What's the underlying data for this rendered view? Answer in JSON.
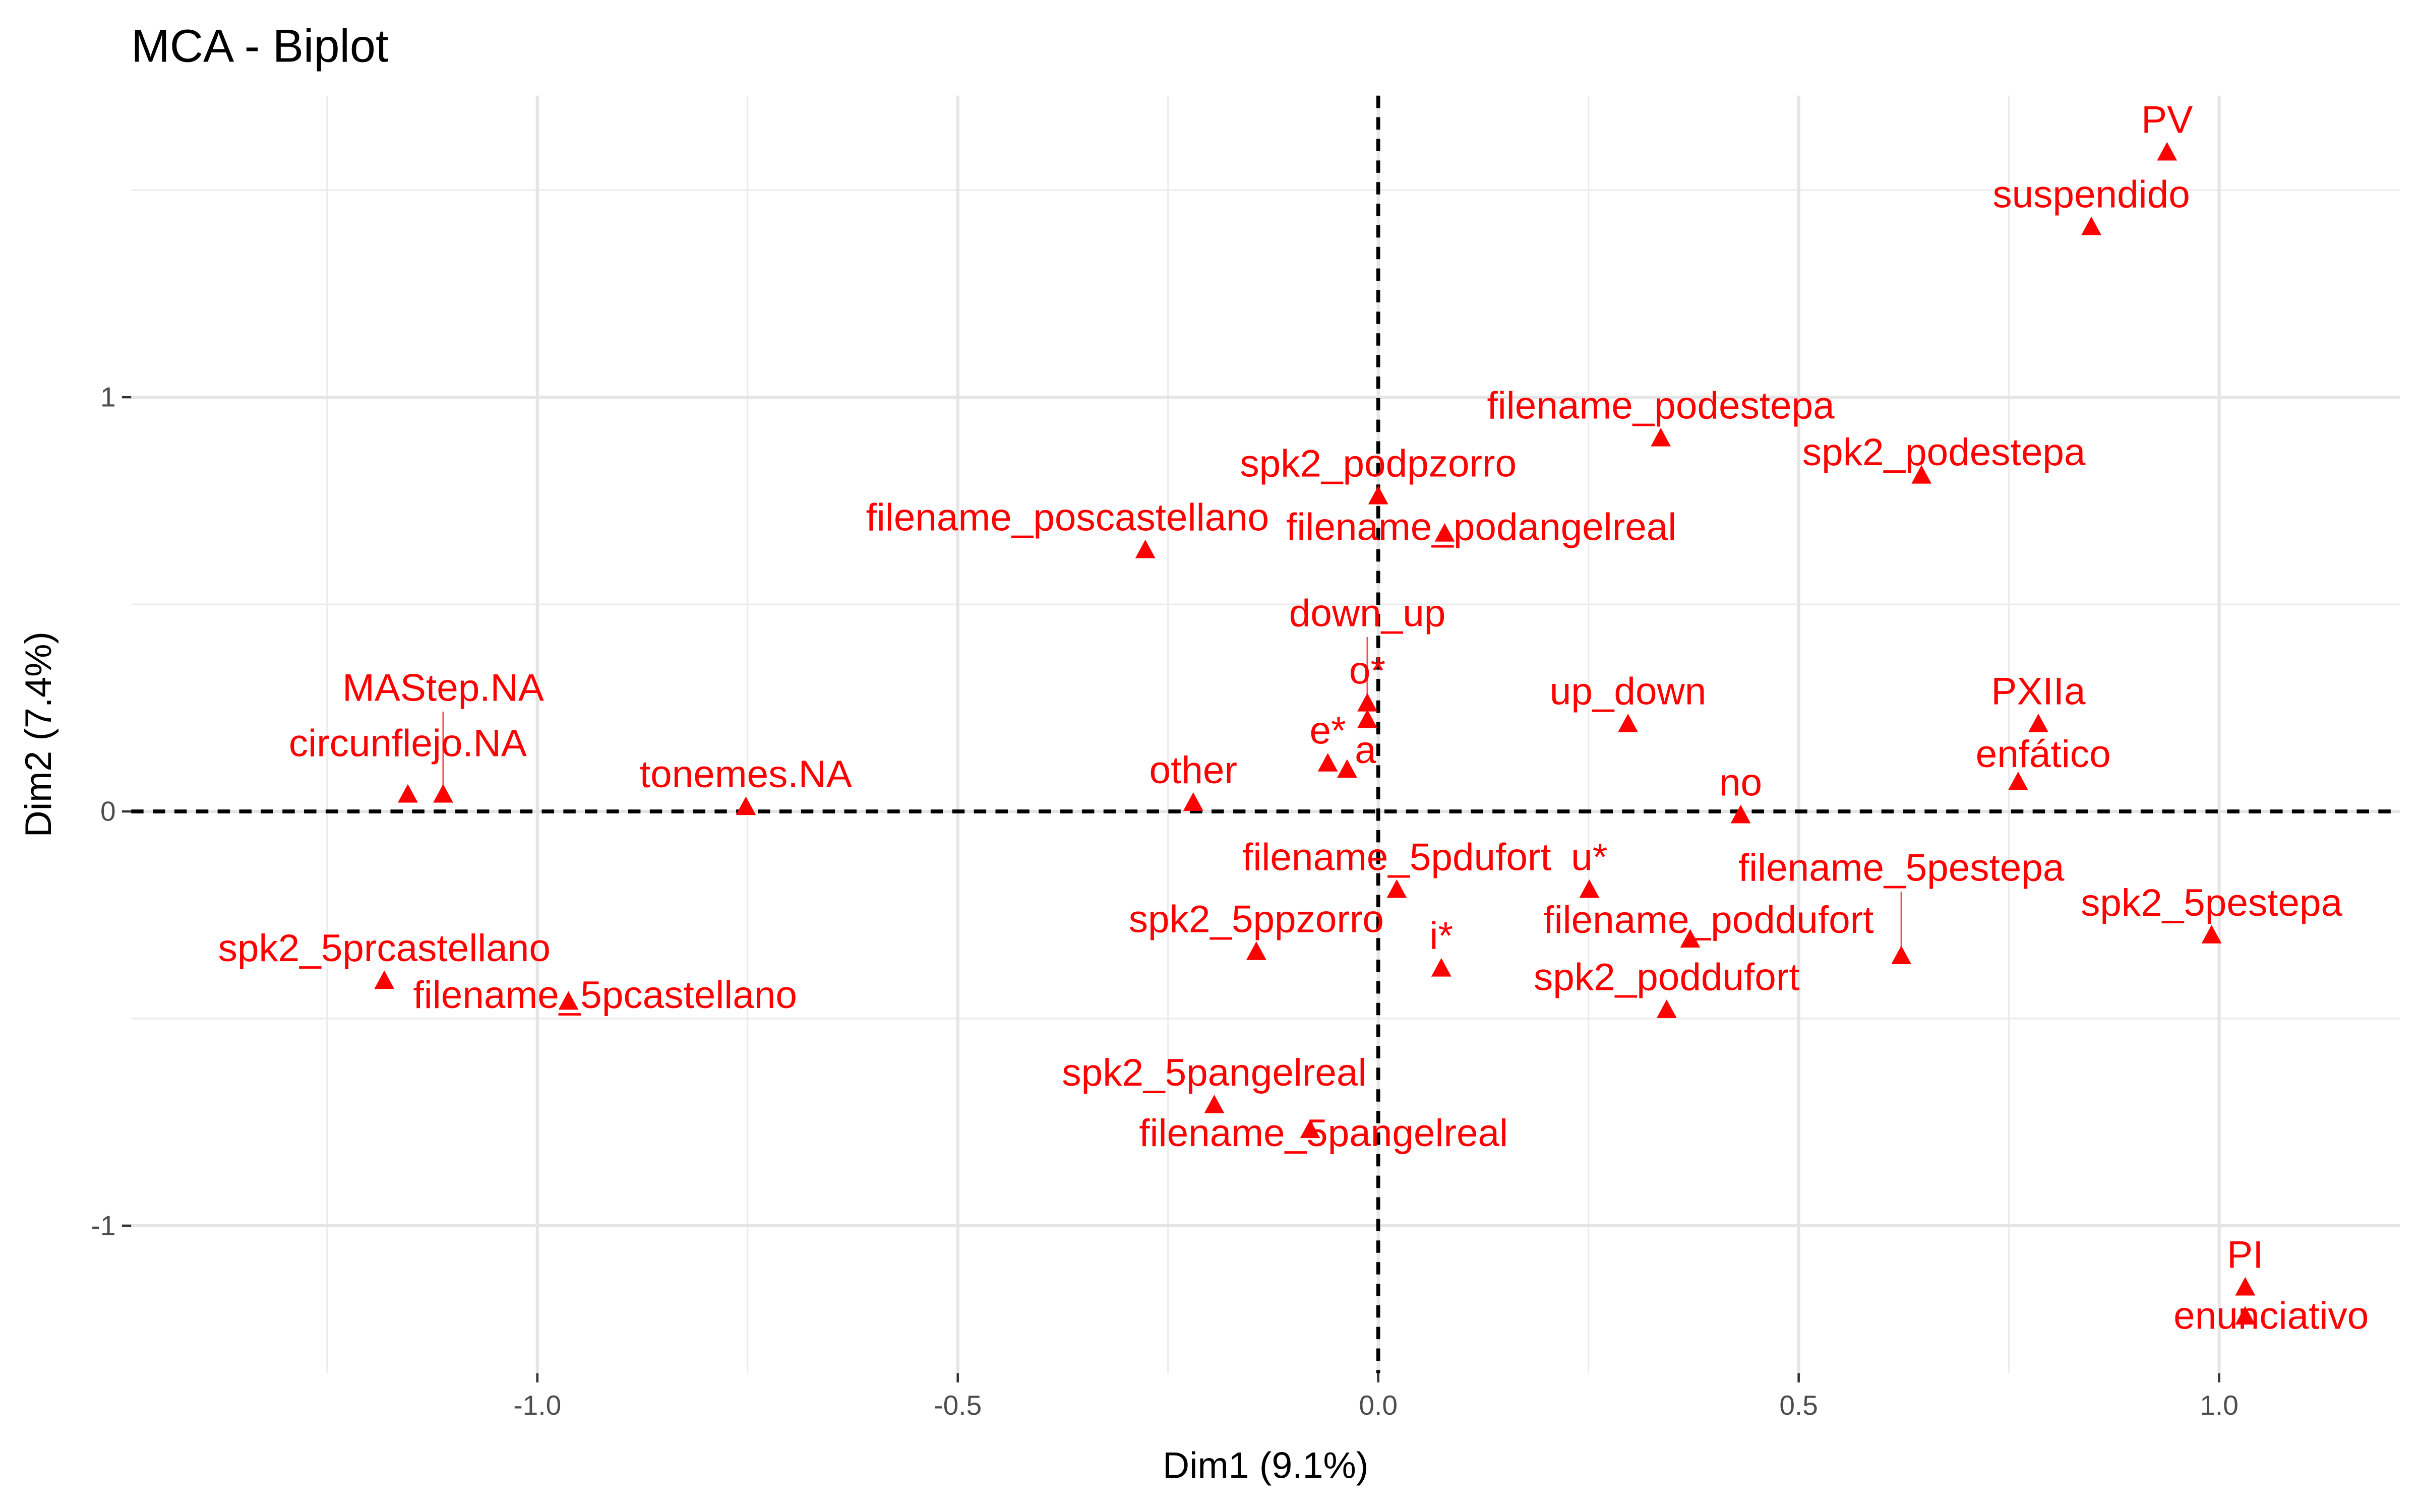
{
  "chart_data": {
    "type": "scatter",
    "title": "MCA - Biplot",
    "xlabel": "Dim1 (9.1%)",
    "ylabel": "Dim2 (7.4%)",
    "xlim": [
      -1.483,
      1.215
    ],
    "ylim": [
      -1.356,
      1.728
    ],
    "xticks": [
      -1.0,
      -0.5,
      0.0,
      0.5,
      1.0
    ],
    "xtick_labels": [
      "-1.0",
      "-0.5",
      "0.0",
      "0.5",
      "1.0"
    ],
    "yticks": [
      -1,
      0,
      1
    ],
    "ytick_labels": [
      "-1",
      "0",
      "1"
    ],
    "grid": true,
    "marker_color": "#FF0000",
    "points": [
      {
        "label": "PV",
        "x": 0.938,
        "y": 1.59
      },
      {
        "label": "suspendido",
        "x": 0.848,
        "y": 1.41
      },
      {
        "label": "filename_podestepa",
        "x": 0.336,
        "y": 0.9
      },
      {
        "label": "spk2_podestepa",
        "x": 0.646,
        "y": 0.81
      },
      {
        "label": "spk2_podpzorro",
        "x": 0.0,
        "y": 0.76
      },
      {
        "label": "filename_podangelreal",
        "x": 0.079,
        "y": 0.67
      },
      {
        "label": "filename_poscastellano",
        "x": -0.277,
        "y": 0.63
      },
      {
        "label": "o*",
        "x": -0.013,
        "y": 0.26
      },
      {
        "label": "down_up",
        "x": -0.013,
        "y": 0.22
      },
      {
        "label": "e*",
        "x": -0.06,
        "y": 0.115
      },
      {
        "label": "a",
        "x": -0.037,
        "y": 0.1
      },
      {
        "label": "up_down",
        "x": 0.297,
        "y": 0.21
      },
      {
        "label": "PXIIa",
        "x": 0.785,
        "y": 0.21
      },
      {
        "label": "enfático",
        "x": 0.761,
        "y": 0.07
      },
      {
        "label": "no",
        "x": 0.431,
        "y": -0.01
      },
      {
        "label": "other",
        "x": -0.22,
        "y": 0.02
      },
      {
        "label": "tonemes.NA",
        "x": -0.752,
        "y": 0.01
      },
      {
        "label": "circunflejo.NA",
        "x": -1.154,
        "y": 0.04
      },
      {
        "label": "MAStep.NA",
        "x": -1.112,
        "y": 0.04
      },
      {
        "label": "filename_5pdufort",
        "x": 0.022,
        "y": -0.19
      },
      {
        "label": "u*",
        "x": 0.251,
        "y": -0.19
      },
      {
        "label": "filename_poddufort",
        "x": 0.371,
        "y": -0.31
      },
      {
        "label": "filename_5pestepa",
        "x": 0.622,
        "y": -0.35
      },
      {
        "label": "spk2_5pestepa",
        "x": 0.991,
        "y": -0.3
      },
      {
        "label": "spk2_5ppzorro",
        "x": -0.145,
        "y": -0.34
      },
      {
        "label": "i*",
        "x": 0.075,
        "y": -0.38
      },
      {
        "label": "spk2_poddufort",
        "x": 0.343,
        "y": -0.48
      },
      {
        "label": "spk2_5prcastellano",
        "x": -1.182,
        "y": -0.41
      },
      {
        "label": "filename_5pcastellano",
        "x": -0.963,
        "y": -0.46
      },
      {
        "label": "spk2_5pangelreal",
        "x": -0.195,
        "y": -0.71
      },
      {
        "label": "filename_5pangelreal",
        "x": -0.081,
        "y": -0.77
      },
      {
        "label": "PI",
        "x": 1.031,
        "y": -1.15
      },
      {
        "label": "enunciativo",
        "x": 1.031,
        "y": -1.22
      }
    ]
  }
}
